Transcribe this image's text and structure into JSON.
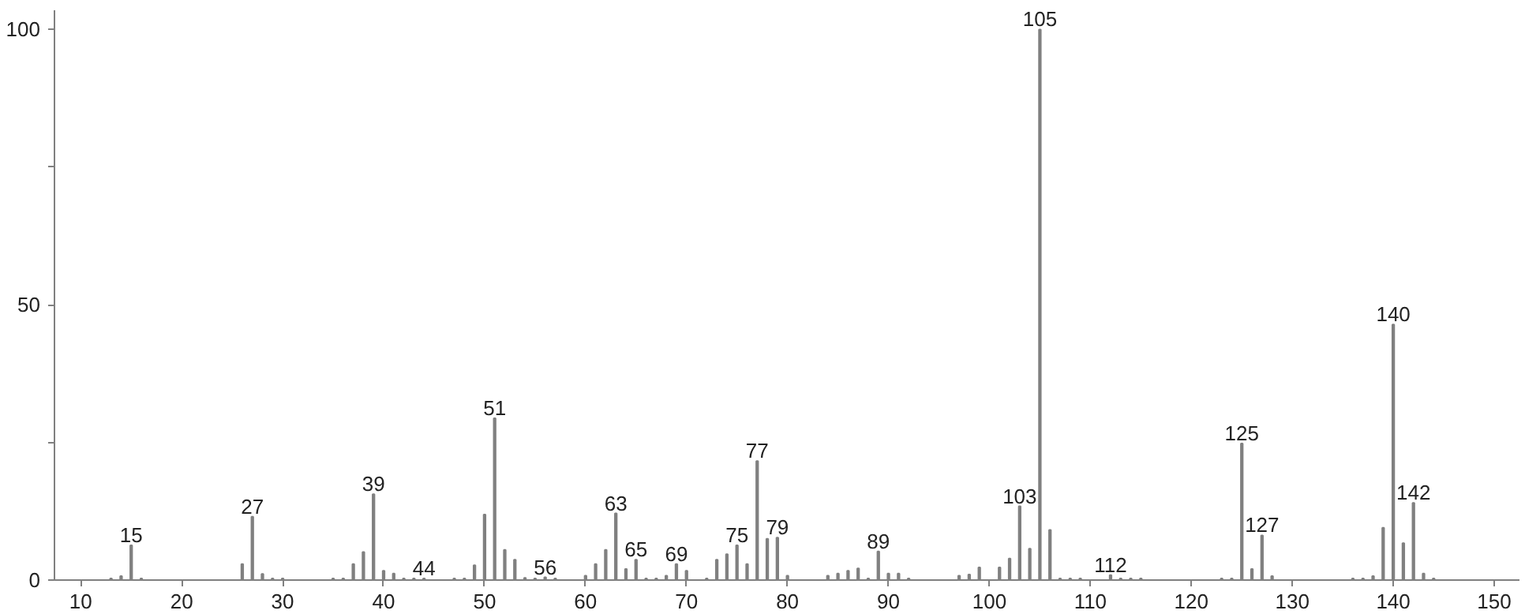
{
  "chart_data": {
    "type": "bar",
    "color": "#808080",
    "x": [
      13,
      14,
      15,
      16,
      26,
      27,
      28,
      29,
      30,
      35,
      36,
      37,
      38,
      39,
      40,
      41,
      42,
      43,
      44,
      47,
      48,
      49,
      50,
      51,
      52,
      53,
      54,
      55,
      56,
      57,
      60,
      61,
      62,
      63,
      64,
      65,
      66,
      67,
      68,
      69,
      70,
      72,
      73,
      74,
      75,
      76,
      77,
      78,
      79,
      80,
      84,
      85,
      86,
      87,
      88,
      89,
      90,
      91,
      92,
      97,
      98,
      99,
      101,
      102,
      103,
      104,
      105,
      106,
      107,
      108,
      109,
      112,
      113,
      114,
      115,
      123,
      124,
      125,
      126,
      127,
      128,
      136,
      137,
      138,
      139,
      140,
      141,
      142,
      143,
      144
    ],
    "values": [
      0.3,
      0.7,
      6.3,
      0.3,
      2.9,
      11.5,
      1.1,
      0.3,
      0.3,
      0.3,
      0.3,
      2.9,
      5.1,
      15.6,
      1.7,
      1.2,
      0.3,
      0.3,
      0.3,
      0.3,
      0.3,
      2.7,
      11.9,
      29.4,
      5.5,
      3.7,
      0.4,
      0.3,
      0.5,
      0.3,
      0.8,
      2.9,
      5.5,
      12.1,
      2.0,
      3.7,
      0.3,
      0.3,
      0.8,
      2.9,
      1.7,
      0.3,
      3.7,
      4.7,
      6.3,
      2.9,
      21.6,
      7.5,
      7.7,
      0.8,
      0.8,
      1.2,
      1.7,
      2.1,
      0.3,
      5.2,
      1.2,
      1.2,
      0.3,
      0.8,
      1.0,
      2.3,
      2.3,
      3.9,
      13.4,
      5.7,
      100,
      9.1,
      0.3,
      0.3,
      0.3,
      0.9,
      0.3,
      0.3,
      0.3,
      0.3,
      0.3,
      24.8,
      2.0,
      8.1,
      0.7,
      0.3,
      0.3,
      0.7,
      9.5,
      46.4,
      6.7,
      14.0,
      1.2,
      0.3
    ],
    "annotations": [
      {
        "text": "15",
        "x": 15,
        "y": 6.3
      },
      {
        "text": "27",
        "x": 27,
        "y": 11.5
      },
      {
        "text": "39",
        "x": 39,
        "y": 15.6
      },
      {
        "text": "44",
        "x": 44,
        "y": 0.3
      },
      {
        "text": "51",
        "x": 51,
        "y": 29.4
      },
      {
        "text": "56",
        "x": 56,
        "y": 0.5
      },
      {
        "text": "63",
        "x": 63,
        "y": 12.1
      },
      {
        "text": "65",
        "x": 65,
        "y": 3.7
      },
      {
        "text": "69",
        "x": 69,
        "y": 2.9
      },
      {
        "text": "75",
        "x": 75,
        "y": 6.3
      },
      {
        "text": "77",
        "x": 77,
        "y": 21.6
      },
      {
        "text": "79",
        "x": 79,
        "y": 7.7
      },
      {
        "text": "89",
        "x": 89,
        "y": 5.2
      },
      {
        "text": "103",
        "x": 103,
        "y": 13.4
      },
      {
        "text": "105",
        "x": 105,
        "y": 100
      },
      {
        "text": "112",
        "x": 112,
        "y": 0.9
      },
      {
        "text": "125",
        "x": 125,
        "y": 24.8
      },
      {
        "text": "127",
        "x": 127,
        "y": 8.1
      },
      {
        "text": "140",
        "x": 140,
        "y": 46.4
      },
      {
        "text": "142",
        "x": 142,
        "y": 14.0
      }
    ],
    "xlim": [
      7.4,
      152.5
    ],
    "xticks": [
      10,
      20,
      30,
      40,
      50,
      60,
      70,
      80,
      90,
      100,
      110,
      120,
      130,
      140,
      150
    ],
    "ylim": [
      0,
      103.5
    ],
    "yticks": [
      0,
      {
        "value": 25,
        "label": null
      },
      50,
      {
        "value": 75,
        "label": null
      },
      100
    ],
    "grid": false
  }
}
